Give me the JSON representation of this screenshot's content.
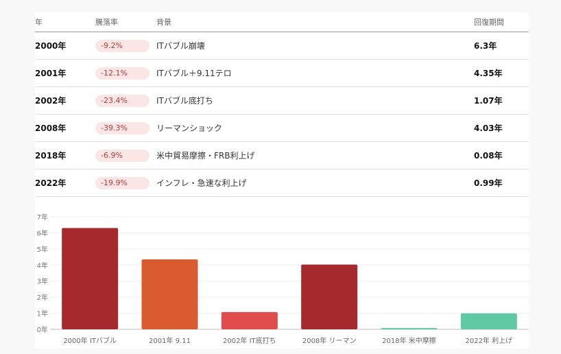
{
  "table": {
    "headers": {
      "year": "年",
      "drop": "騰落率",
      "background": "背景",
      "recovery": "回復期間"
    },
    "rows": [
      {
        "year": "2000年",
        "drop": "-9.2%",
        "background": "ITバブル崩壊",
        "recovery": "6.3年"
      },
      {
        "year": "2001年",
        "drop": "-12.1%",
        "background": "ITバブル＋9.11テロ",
        "recovery": "4.35年"
      },
      {
        "year": "2002年",
        "drop": "-23.4%",
        "background": "ITバブル底打ち",
        "recovery": "1.07年"
      },
      {
        "year": "2008年",
        "drop": "-39.3%",
        "background": "リーマンショック",
        "recovery": "4.03年"
      },
      {
        "year": "2018年",
        "drop": "-6.9%",
        "background": "米中貿易摩擦・FRB利上げ",
        "recovery": "0.08年"
      },
      {
        "year": "2022年",
        "drop": "-19.9%",
        "background": "インフレ・急速な利上げ",
        "recovery": "0.99年"
      }
    ]
  },
  "colors": {
    "pill_bg": "#fbe6e6",
    "pill_text": "#b23a3a",
    "bars": [
      "#a52a2e",
      "#d95a2f",
      "#e04b4b",
      "#a52a2e",
      "#5fc9a3",
      "#5fc9a3"
    ]
  },
  "chart_data": {
    "type": "bar",
    "categories": [
      "2000年 ITバブル",
      "2001年 9.11",
      "2002年 IT底打ち",
      "2008年 リーマン",
      "2018年 米中摩擦",
      "2022年 利上げ"
    ],
    "values": [
      6.3,
      4.35,
      1.07,
      4.03,
      0.08,
      0.99
    ],
    "ylim": [
      0,
      7
    ],
    "yticks": [
      0,
      1,
      2,
      3,
      4,
      5,
      6,
      7
    ],
    "ytick_labels": [
      "0年",
      "1年",
      "2年",
      "3年",
      "4年",
      "5年",
      "6年",
      "7年"
    ],
    "grid": true,
    "legend": "none"
  }
}
